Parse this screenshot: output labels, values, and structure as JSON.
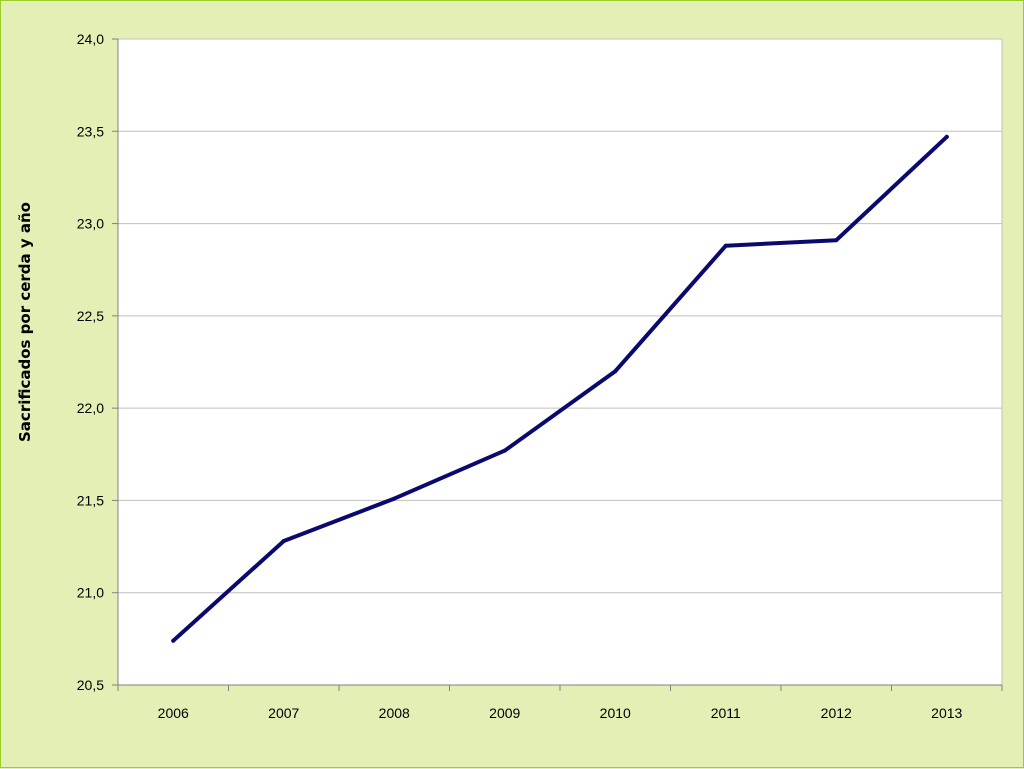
{
  "chart_data": {
    "type": "line",
    "title": "",
    "xlabel": "",
    "ylabel": "Sacrificados por cerda y año",
    "categories": [
      "2006",
      "2007",
      "2008",
      "2009",
      "2010",
      "2011",
      "2012",
      "2013"
    ],
    "series": [
      {
        "values": [
          20.74,
          21.28,
          21.51,
          21.77,
          22.2,
          22.88,
          22.91,
          23.47
        ]
      }
    ],
    "ylim": [
      20.5,
      24.0
    ],
    "yticks": [
      "20,5",
      "21,0",
      "21,5",
      "22,0",
      "22,5",
      "23,0",
      "23,5",
      "24,0"
    ],
    "ytick_values": [
      20.5,
      21.0,
      21.5,
      22.0,
      22.5,
      23.0,
      23.5,
      24.0
    ],
    "grid": true,
    "legend": "none",
    "colors": {
      "line": "#0a0a6e",
      "grid": "#c0c0c0",
      "plot_background": "#ffffff",
      "page_background": "#e3efb4",
      "frame": "#9bcc2a"
    }
  }
}
